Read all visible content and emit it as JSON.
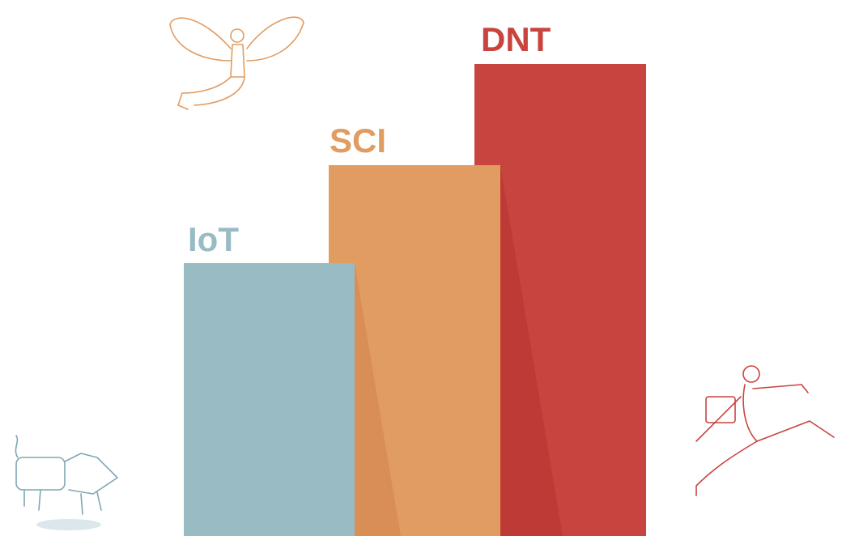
{
  "labels": {
    "iot": "IoT",
    "sci": "SCI",
    "dnt": "DNT"
  }
}
